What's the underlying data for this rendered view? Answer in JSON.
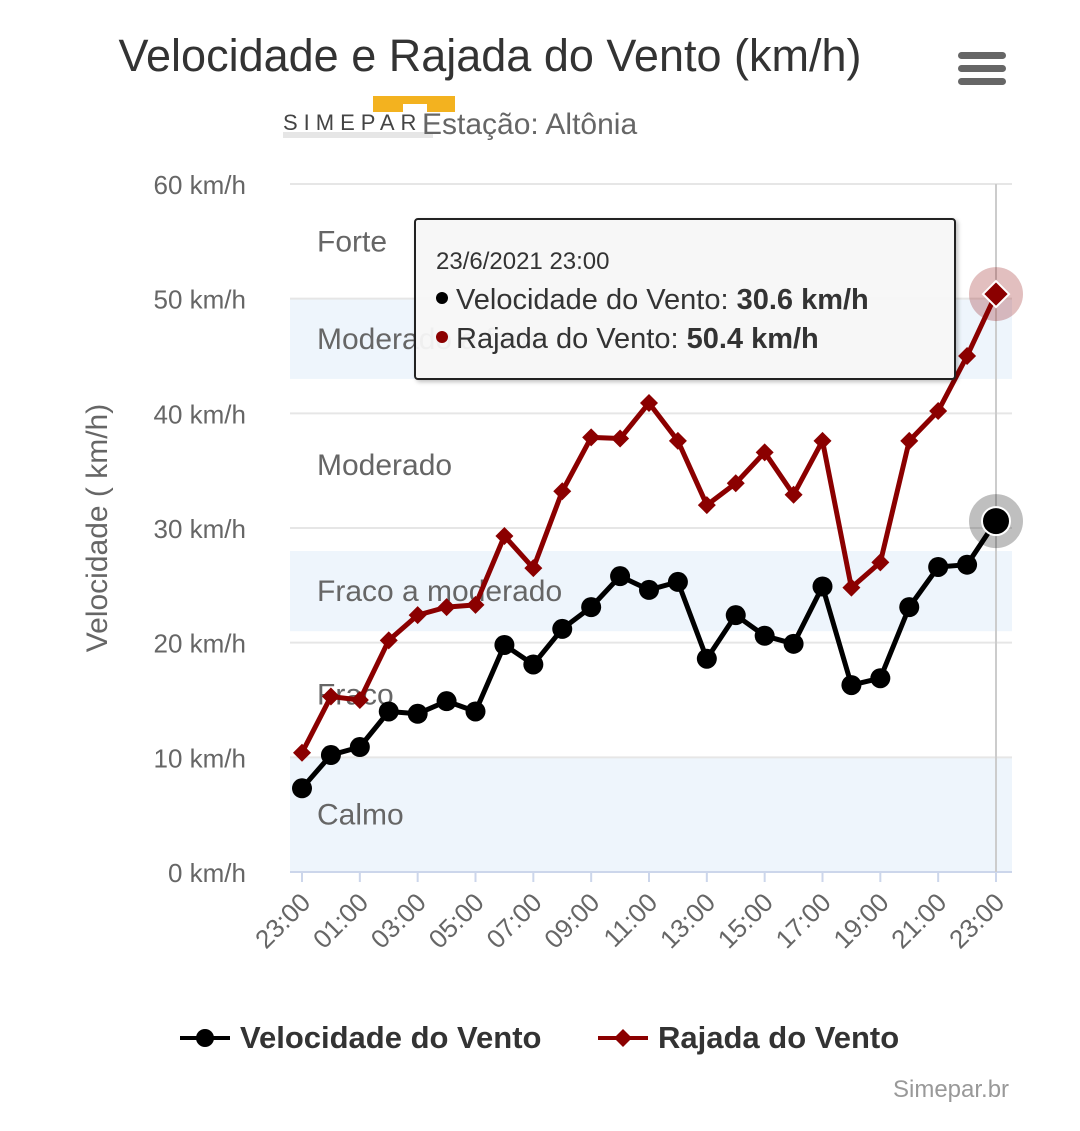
{
  "header": {
    "title": "Velocidade e Rajada do Vento (km/h)",
    "subtitle": "Estação: Altônia",
    "logo_text": "SIMEPAR"
  },
  "chart_data": {
    "type": "line",
    "title": "Velocidade e Rajada do Vento (km/h)",
    "subtitle": "Estação: Altônia",
    "ylabel": "Velocidade ( km/h)",
    "xlabel": "",
    "ylim": [
      0,
      60
    ],
    "yticks": [
      "0 km/h",
      "10 km/h",
      "20 km/h",
      "30 km/h",
      "40 km/h",
      "50 km/h",
      "60 km/h"
    ],
    "x": [
      "23:00",
      "00:00",
      "01:00",
      "02:00",
      "03:00",
      "04:00",
      "05:00",
      "06:00",
      "07:00",
      "08:00",
      "09:00",
      "10:00",
      "11:00",
      "12:00",
      "13:00",
      "14:00",
      "15:00",
      "16:00",
      "17:00",
      "18:00",
      "19:00",
      "20:00",
      "21:00",
      "22:00",
      "23:00"
    ],
    "xticks": [
      "23:00",
      "01:00",
      "03:00",
      "05:00",
      "07:00",
      "09:00",
      "11:00",
      "13:00",
      "15:00",
      "17:00",
      "19:00",
      "21:00",
      "23:00"
    ],
    "series": [
      {
        "name": "Velocidade do Vento",
        "color": "#000000",
        "marker": "circle",
        "values": [
          7.3,
          10.2,
          10.9,
          14.0,
          13.8,
          14.9,
          14.0,
          19.8,
          18.1,
          21.2,
          23.1,
          25.8,
          24.6,
          25.3,
          18.6,
          22.4,
          20.6,
          19.9,
          24.9,
          16.3,
          16.9,
          23.1,
          26.6,
          26.8,
          30.6
        ]
      },
      {
        "name": "Rajada do Vento",
        "color": "#8b0000",
        "marker": "diamond",
        "values": [
          10.4,
          15.3,
          15.0,
          20.2,
          22.4,
          23.1,
          23.3,
          29.3,
          26.5,
          33.2,
          37.9,
          37.8,
          40.9,
          37.6,
          32.0,
          33.9,
          36.6,
          32.9,
          37.6,
          24.8,
          27.0,
          37.6,
          40.2,
          45.0,
          50.4
        ]
      }
    ],
    "plot_bands": [
      {
        "label": "Calmo",
        "from": 0,
        "to": 10,
        "color": "#eef5fc"
      },
      {
        "label": "Fraco",
        "from": 10,
        "to": 21,
        "color": "#ffffff"
      },
      {
        "label": "Fraco a moderado",
        "from": 21,
        "to": 28,
        "color": "#eef5fc"
      },
      {
        "label": "Moderado",
        "from": 28,
        "to": 43,
        "color": "#ffffff"
      },
      {
        "label": "Moderado a forte",
        "from": 43,
        "to": 50,
        "color": "#eef5fc"
      },
      {
        "label": "Forte",
        "from": 50,
        "to": 60,
        "color": "#ffffff"
      }
    ],
    "grid": true,
    "legend_position": "bottom-center",
    "highlighted_index": 24
  },
  "tooltip": {
    "date": "23/6/2021 23:00",
    "rows": [
      {
        "label": "Velocidade do Vento: ",
        "value": "30.6 km/h",
        "color": "#000000"
      },
      {
        "label": "Rajada do Vento: ",
        "value": "50.4 km/h",
        "color": "#8b0000"
      }
    ]
  },
  "legend": [
    "Velocidade do Vento",
    "Rajada do Vento"
  ],
  "credits": "Simepar.br"
}
